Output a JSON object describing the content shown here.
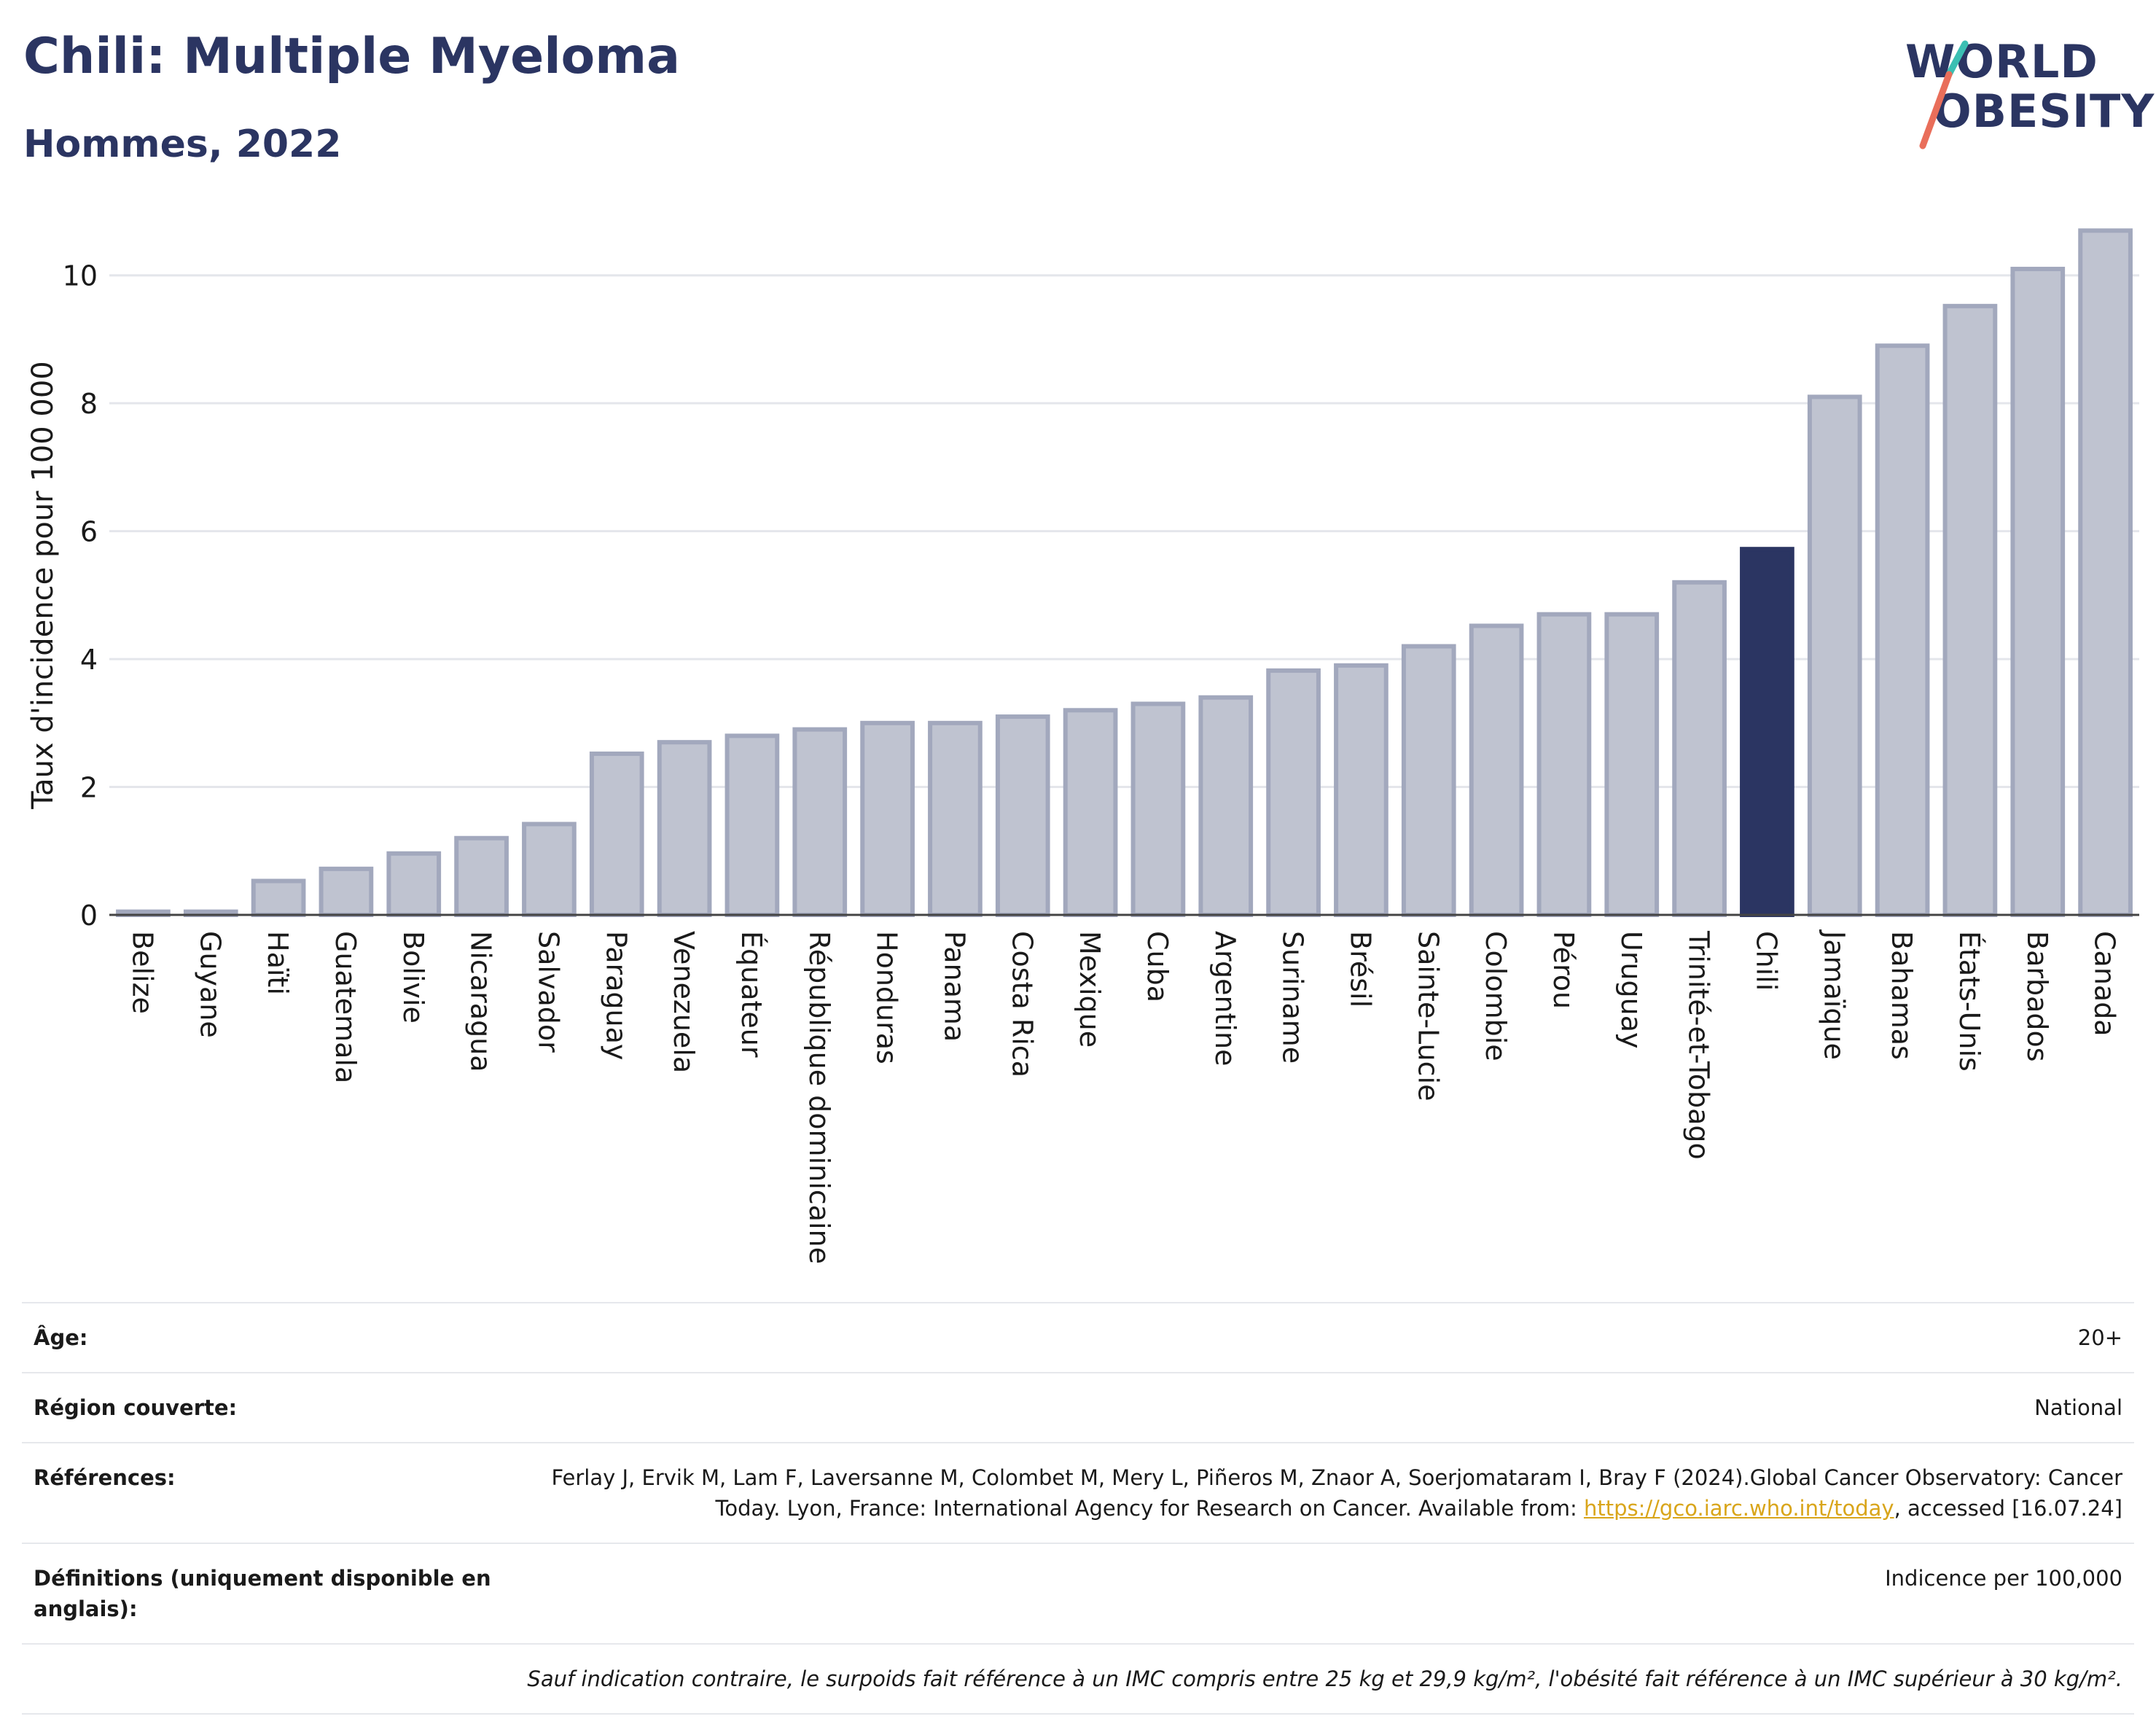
{
  "header": {
    "title": "Chili: Multiple Myeloma",
    "subtitle": "Hommes, 2022",
    "logo_line1": "WORLD",
    "logo_line2": "OBESITY"
  },
  "colors": {
    "highlight": "#2b3562",
    "bar_fill": "#bfc3d0",
    "bar_stroke": "#a2a8bd",
    "title": "#2b3562",
    "logo_accent_teal": "#3bbfb3",
    "logo_accent_coral": "#e96e5a"
  },
  "chart_data": {
    "type": "bar",
    "ylabel": "Taux d'incidence pour 100 000",
    "ylim": [
      0,
      11
    ],
    "yticks": [
      0,
      2,
      4,
      6,
      8,
      10
    ],
    "grid": true,
    "highlight_category": "Chili",
    "categories": [
      "Belize",
      "Guyane",
      "Haïti",
      "Guatemala",
      "Bolivie",
      "Nicaragua",
      "Salvador",
      "Paraguay",
      "Venezuela",
      "Équateur",
      "République dominicaine",
      "Honduras",
      "Panama",
      "Costa Rica",
      "Mexique",
      "Cuba",
      "Argentine",
      "Suriname",
      "Brésil",
      "Sainte-Lucie",
      "Colombie",
      "Pérou",
      "Uruguay",
      "Trinité-et-Tobago",
      "Chili",
      "Jamaïque",
      "Bahamas",
      "États-Unis",
      "Barbados",
      "Canada"
    ],
    "values": [
      0.05,
      0.05,
      0.53,
      0.72,
      0.96,
      1.2,
      1.42,
      2.52,
      2.7,
      2.8,
      2.9,
      3.0,
      3.0,
      3.1,
      3.2,
      3.3,
      3.4,
      3.82,
      3.9,
      4.2,
      4.52,
      4.7,
      4.7,
      5.2,
      5.72,
      8.1,
      8.9,
      9.52,
      10.1,
      10.7
    ]
  },
  "meta": {
    "rows": [
      {
        "key": "Âge:",
        "value": "20+"
      },
      {
        "key": "Région couverte:",
        "value": "National"
      },
      {
        "key": "Références:",
        "value_pre": "Ferlay J, Ervik M, Lam F, Laversanne M, Colombet M, Mery L, Piñeros M, Znaor A, Soerjomataram I, Bray F (2024).Global Cancer Observatory: Cancer Today. Lyon, France: International Agency for Research on Cancer. Available from: ",
        "link": "https://gco.iarc.who.int/today",
        "value_post": ", accessed [16.07.24]"
      },
      {
        "key": "Définitions (uniquement disponible en anglais):",
        "value": "Indicence per 100,000"
      }
    ],
    "note": "Sauf indication contraire, le surpoids fait référence à un IMC compris entre 25 kg et 29,9 kg/m², l'obésité fait référence à un IMC supérieur à 30 kg/m²."
  }
}
